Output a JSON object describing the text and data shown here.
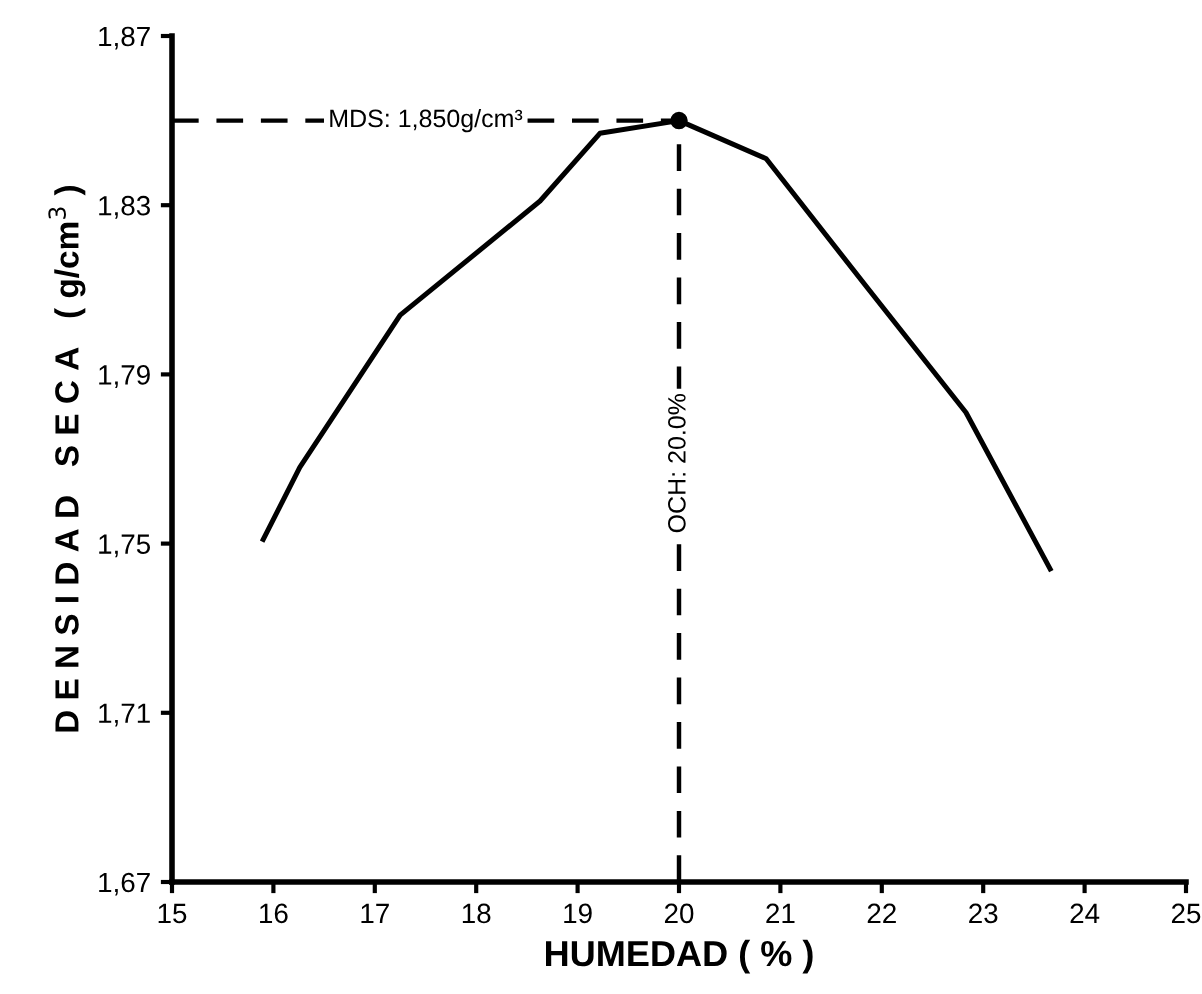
{
  "chart_data": {
    "type": "line",
    "xlabel": "HUMEDAD ( % )",
    "ylabel": "D E N S I D A D   S E C A   ( g/cm$^{3}$ )",
    "xlim": [
      15,
      25
    ],
    "xticks": [
      15,
      16,
      17,
      18,
      19,
      20,
      21,
      22,
      23,
      24,
      25
    ],
    "ylim": [
      1.67,
      1.87
    ],
    "yticks": [
      {
        "value": 1.67,
        "label": "1,67"
      },
      {
        "value": 1.71,
        "label": "1,71"
      },
      {
        "value": 1.75,
        "label": "1,75"
      },
      {
        "value": 1.79,
        "label": "1,79"
      },
      {
        "value": 1.83,
        "label": "1,83"
      },
      {
        "value": 1.87,
        "label": "1,87"
      }
    ],
    "series": [
      {
        "color": "#000000",
        "marker": "none",
        "x": [
          15.9,
          16.26,
          17.25,
          18.63,
          19.22,
          20.0,
          20.86,
          21.84,
          22.83,
          23.66
        ],
        "values": [
          1.751,
          1.768,
          1.804,
          1.831,
          1.847,
          1.85,
          1.841,
          1.811,
          1.781,
          1.744
        ]
      },
      {
        "type": "scatter",
        "color": "#000000",
        "marker": "circle",
        "x": [
          20.0
        ],
        "values": [
          1.85
        ]
      }
    ],
    "ref_lines": [
      {
        "axis": "y",
        "value": 1.85,
        "label": "MDS: 1,850g/cm³",
        "line_style": "dashed",
        "color": "#000000"
      },
      {
        "axis": "x",
        "value": 20.0,
        "label": "OCH: 20.0%",
        "line_style": "dashed",
        "color": "#000000"
      }
    ],
    "grid": false,
    "legend": false
  }
}
